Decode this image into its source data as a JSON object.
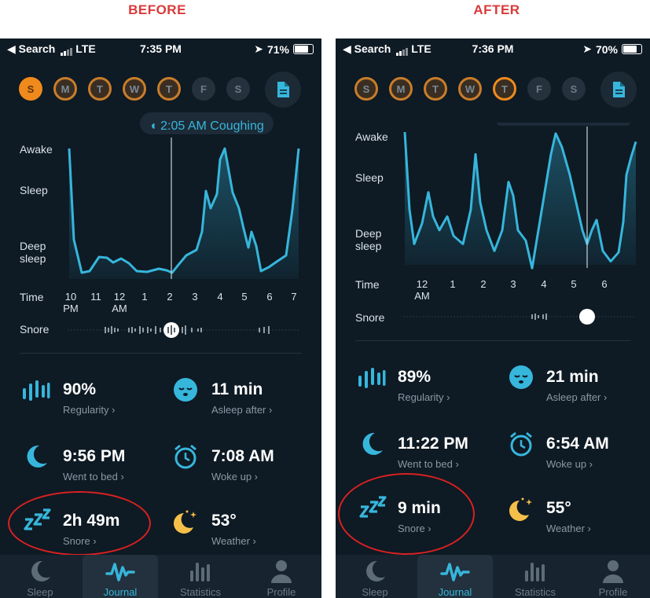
{
  "captions": {
    "before": "BEFORE",
    "after": "AFTER"
  },
  "colors": {
    "accent": "#37b6dc",
    "orange": "#f08a1c",
    "annotation": "#d92121"
  },
  "before": {
    "status": {
      "carrier": "◀ Search",
      "network": "LTE",
      "time": "7:35 PM",
      "battery": "71%"
    },
    "days": [
      "S",
      "M",
      "T",
      "W",
      "T",
      "F",
      "S"
    ],
    "tooltip": "2:05 AM Coughing",
    "y_labels": {
      "awake": "Awake",
      "sleep": "Sleep",
      "deep": "Deep sleep"
    },
    "x_title": "Time",
    "x_ticks": [
      "10 PM",
      "11",
      "12 AM",
      "1",
      "2",
      "3",
      "4",
      "5",
      "6",
      "7"
    ],
    "snore_label": "Snore",
    "stats": {
      "regularity": {
        "value": "90%",
        "label": "Regularity ›"
      },
      "asleep_after": {
        "value": "11 min",
        "label": "Asleep after ›"
      },
      "went_to_bed": {
        "value": "9:56 PM",
        "label": "Went to bed ›"
      },
      "woke_up": {
        "value": "7:08 AM",
        "label": "Woke up ›"
      },
      "snore": {
        "value": "2h 49m",
        "label": "Snore ›"
      },
      "weather": {
        "value": "53°",
        "label": "Weather ›"
      }
    },
    "tabs": [
      "Sleep",
      "Journal",
      "Statistics",
      "Profile"
    ]
  },
  "after": {
    "status": {
      "carrier": "◀ Search",
      "network": "LTE",
      "time": "7:36 PM",
      "battery": "70%"
    },
    "days": [
      "S",
      "M",
      "T",
      "W",
      "T",
      "F",
      "S"
    ],
    "y_labels": {
      "awake": "Awake",
      "sleep": "Sleep",
      "deep": "Deep sleep"
    },
    "x_title": "Time",
    "x_ticks": [
      "12 AM",
      "1",
      "2",
      "3",
      "4",
      "5",
      "6"
    ],
    "snore_label": "Snore",
    "stats": {
      "regularity": {
        "value": "89%",
        "label": "Regularity ›"
      },
      "asleep_after": {
        "value": "21 min",
        "label": "Asleep after ›"
      },
      "went_to_bed": {
        "value": "11:22 PM",
        "label": "Went to bed ›"
      },
      "woke_up": {
        "value": "6:54 AM",
        "label": "Woke up ›"
      },
      "snore": {
        "value": "9 min",
        "label": "Snore ›"
      },
      "weather": {
        "value": "55°",
        "label": "Weather ›"
      }
    },
    "tabs": [
      "Sleep",
      "Journal",
      "Statistics",
      "Profile"
    ]
  }
}
